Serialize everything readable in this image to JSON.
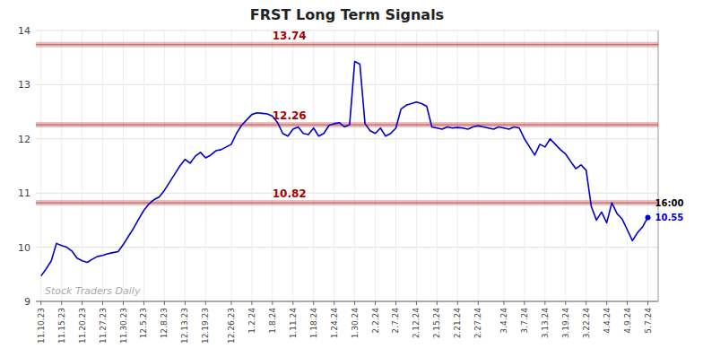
{
  "chart_data": {
    "type": "line",
    "title": "FRST Long Term Signals",
    "color": "#0000cc",
    "marker": "last",
    "grid": true,
    "ylim": [
      9,
      14
    ],
    "yticks": [
      9,
      10,
      11,
      12,
      13,
      14
    ],
    "categories": [
      "11.10.23",
      null,
      null,
      null,
      "11.15.23",
      null,
      null,
      null,
      "11.20.23",
      null,
      null,
      null,
      "11.27.23",
      null,
      null,
      null,
      "11.30.23",
      null,
      null,
      null,
      "12.5.23",
      null,
      null,
      null,
      "12.8.23",
      null,
      null,
      null,
      "12.13.23",
      null,
      null,
      null,
      "12.19.23",
      null,
      null,
      null,
      null,
      "12.26.23",
      null,
      null,
      null,
      "1.2.24",
      null,
      null,
      null,
      "1.8.24",
      null,
      null,
      null,
      "1.11.24",
      null,
      null,
      null,
      "1.18.24",
      null,
      null,
      null,
      "1.24.24",
      null,
      null,
      null,
      "1.30.24",
      null,
      null,
      null,
      "2.2.24",
      null,
      null,
      null,
      "2.7.24",
      null,
      null,
      null,
      "2.12.24",
      null,
      null,
      null,
      "2.15.24",
      null,
      null,
      null,
      "2.21.24",
      null,
      null,
      null,
      "2.27.24",
      null,
      null,
      null,
      null,
      "3.4.24",
      null,
      null,
      null,
      "3.7.24",
      null,
      null,
      null,
      "3.13.24",
      null,
      null,
      null,
      "3.19.24",
      null,
      null,
      null,
      "3.22.24",
      null,
      null,
      null,
      "4.4.24",
      null,
      null,
      null,
      "4.9.24",
      null,
      null,
      null,
      "5.7.24"
    ],
    "values": [
      9.47,
      9.6,
      9.75,
      10.07,
      10.03,
      10.0,
      9.93,
      9.8,
      9.75,
      9.72,
      9.78,
      9.83,
      9.85,
      9.88,
      9.9,
      9.92,
      10.05,
      10.2,
      10.35,
      10.52,
      10.68,
      10.8,
      10.88,
      10.93,
      11.05,
      11.2,
      11.35,
      11.5,
      11.62,
      11.55,
      11.68,
      11.75,
      11.65,
      11.7,
      11.78,
      11.8,
      11.85,
      11.9,
      12.1,
      12.25,
      12.35,
      12.45,
      12.48,
      12.47,
      12.46,
      12.42,
      12.3,
      12.1,
      12.05,
      12.18,
      12.22,
      12.1,
      12.08,
      12.2,
      12.05,
      12.1,
      12.25,
      12.28,
      12.3,
      12.22,
      12.26,
      13.43,
      13.38,
      12.28,
      12.15,
      12.1,
      12.2,
      12.05,
      12.1,
      12.2,
      12.55,
      12.62,
      12.65,
      12.68,
      12.65,
      12.6,
      12.22,
      12.2,
      12.18,
      12.22,
      12.2,
      12.21,
      12.2,
      12.18,
      12.22,
      12.24,
      12.22,
      12.2,
      12.18,
      12.22,
      12.2,
      12.18,
      12.22,
      12.2,
      12.0,
      11.85,
      11.7,
      11.9,
      11.85,
      12.0,
      11.9,
      11.8,
      11.72,
      11.58,
      11.45,
      11.52,
      11.42,
      10.75,
      10.5,
      10.65,
      10.45,
      10.82,
      10.62,
      10.52,
      10.32,
      10.12,
      10.27,
      10.38,
      10.55
    ],
    "reference_lines": [
      {
        "value": 13.74,
        "label": "13.74",
        "color": "#aa0000"
      },
      {
        "value": 12.26,
        "label": "12.26",
        "color": "#aa0000"
      },
      {
        "value": 10.82,
        "label": "10.82",
        "color": "#aa0000"
      }
    ],
    "annotations": [
      {
        "text": "16:00",
        "color": "#000000"
      },
      {
        "text": "10.55",
        "value": 10.55,
        "color": "#0000cc"
      },
      {
        "text": "Stock Traders Daily",
        "color": "#aaaaaa"
      }
    ]
  }
}
